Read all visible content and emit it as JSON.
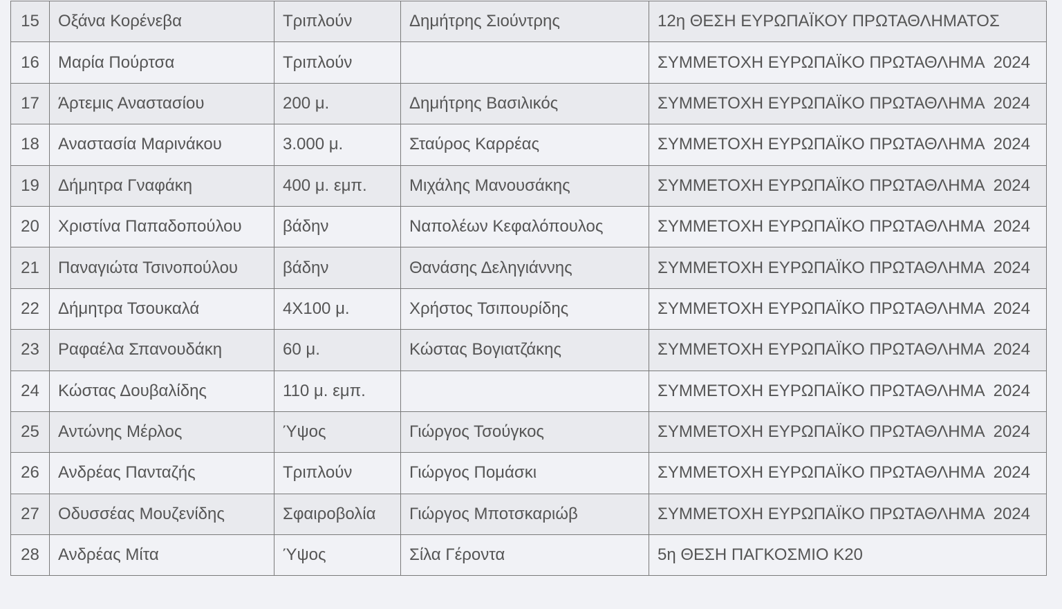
{
  "rows": [
    {
      "no": "15",
      "name": "Οξάνα Κορένεβα",
      "event": "Τριπλούν",
      "coach": "Δημήτρης Σιούντρης",
      "result": "12η ΘΕΣΗ ΕΥΡΩΠΑΪΚΟΥ ΠΡΩΤΑΘΛΗΜΑΤΟΣ"
    },
    {
      "no": "16",
      "name": "Μαρία Πούρτσα",
      "event": "Τριπλούν",
      "coach": "",
      "result": "ΣΥΜΜΕΤΟΧΗ ΕΥΡΩΠΑΪΚΟ ΠΡΩΤΑΘΛΗΜΑ  2024"
    },
    {
      "no": "17",
      "name": "Άρτεμις Αναστασίου",
      "event": "200 μ.",
      "coach": "Δημήτρης Βασιλικός",
      "result": "ΣΥΜΜΕΤΟΧΗ ΕΥΡΩΠΑΪΚΟ ΠΡΩΤΑΘΛΗΜΑ  2024"
    },
    {
      "no": "18",
      "name": "Αναστασία Μαρινάκου",
      "event": "3.000 μ.",
      "coach": "Σταύρος Καρρέας",
      "result": "ΣΥΜΜΕΤΟΧΗ ΕΥΡΩΠΑΪΚΟ ΠΡΩΤΑΘΛΗΜΑ  2024"
    },
    {
      "no": "19",
      "name": "Δήμητρα Γναφάκη",
      "event": "400 μ. εμπ.",
      "coach": "Μιχάλης Μανουσάκης",
      "result": "ΣΥΜΜΕΤΟΧΗ ΕΥΡΩΠΑΪΚΟ ΠΡΩΤΑΘΛΗΜΑ  2024"
    },
    {
      "no": "20",
      "name": "Χριστίνα Παπαδοπούλου",
      "event": "βάδην",
      "coach": "Ναπολέων Κεφαλόπουλος",
      "result": "ΣΥΜΜΕΤΟΧΗ ΕΥΡΩΠΑΪΚΟ ΠΡΩΤΑΘΛΗΜΑ  2024"
    },
    {
      "no": "21",
      "name": "Παναγιώτα Τσινοπούλου",
      "event": "βάδην",
      "coach": "Θανάσης Δεληγιάννης",
      "result": "ΣΥΜΜΕΤΟΧΗ ΕΥΡΩΠΑΪΚΟ ΠΡΩΤΑΘΛΗΜΑ  2024"
    },
    {
      "no": "22",
      "name": "Δήμητρα Τσουκαλά",
      "event": "4Χ100 μ.",
      "coach": "Χρήστος Τσιπουρίδης",
      "result": "ΣΥΜΜΕΤΟΧΗ ΕΥΡΩΠΑΪΚΟ ΠΡΩΤΑΘΛΗΜΑ  2024"
    },
    {
      "no": "23",
      "name": "Ραφαέλα Σπανουδάκη",
      "event": "60 μ.",
      "coach": "Κώστας Βογιατζάκης",
      "result": "ΣΥΜΜΕΤΟΧΗ ΕΥΡΩΠΑΪΚΟ ΠΡΩΤΑΘΛΗΜΑ  2024"
    },
    {
      "no": "24",
      "name": "Κώστας Δουβαλίδης",
      "event": "110 μ. εμπ.",
      "coach": "",
      "result": "ΣΥΜΜΕΤΟΧΗ ΕΥΡΩΠΑΪΚΟ ΠΡΩΤΑΘΛΗΜΑ  2024"
    },
    {
      "no": "25",
      "name": "Αντώνης Μέρλος",
      "event": "Ύψος",
      "coach": "Γιώργος Τσούγκος",
      "result": "ΣΥΜΜΕΤΟΧΗ ΕΥΡΩΠΑΪΚΟ ΠΡΩΤΑΘΛΗΜΑ  2024"
    },
    {
      "no": "26",
      "name": "Ανδρέας Πανταζής",
      "event": "Τριπλούν",
      "coach": "Γιώργος Πομάσκι",
      "result": "ΣΥΜΜΕΤΟΧΗ ΕΥΡΩΠΑΪΚΟ ΠΡΩΤΑΘΛΗΜΑ  2024"
    },
    {
      "no": "27",
      "name": "Οδυσσέας Μουζενίδης",
      "event": "Σφαιροβολία",
      "coach": "Γιώργος Μποτσκαριώβ",
      "result": "ΣΥΜΜΕΤΟΧΗ ΕΥΡΩΠΑΪΚΟ ΠΡΩΤΑΘΛΗΜΑ  2024"
    },
    {
      "no": "28",
      "name": "Ανδρέας Μίτα",
      "event": "Ύψος",
      "coach": "Σίλα Γέροντα",
      "result": "5η ΘΕΣΗ ΠΑΓΚΟΣΜΙΟ Κ20"
    }
  ]
}
